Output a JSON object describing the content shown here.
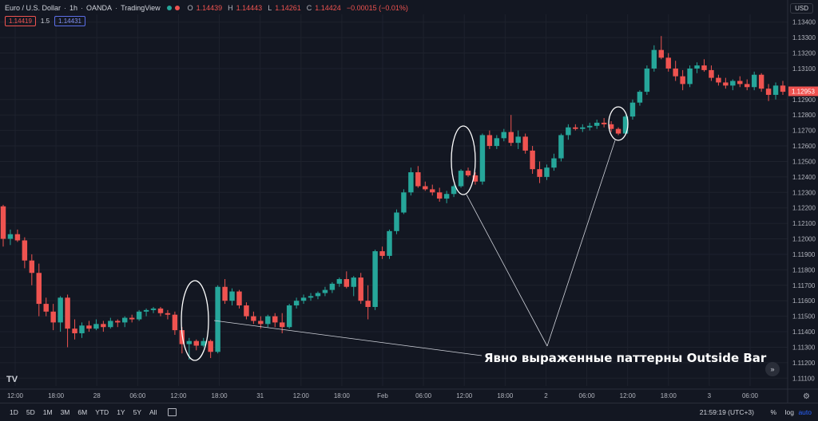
{
  "header": {
    "symbol": "Euro / U.S. Dollar",
    "interval": "1h",
    "broker": "OANDA",
    "platform": "TradingView",
    "ohlc": [
      {
        "k": "O",
        "v": "1.14439"
      },
      {
        "k": "H",
        "v": "1.14443"
      },
      {
        "k": "L",
        "v": "1.14261"
      },
      {
        "k": "C",
        "v": "1.14424"
      }
    ],
    "change": "−0.00015 (−0.01%)",
    "sell_price": "1.14419",
    "spread": "1.5",
    "buy_price": "1.14431",
    "currency": "USD"
  },
  "bottom": {
    "ranges": [
      "1D",
      "5D",
      "1M",
      "3M",
      "6M",
      "YTD",
      "1Y",
      "5Y",
      "All"
    ],
    "clock": "21:59:19 (UTC+3)",
    "percent": "%",
    "log": "log",
    "auto": "auto"
  },
  "annotation": {
    "text": "Явно выраженные паттерны Outside Bar"
  },
  "colors": {
    "up": "#26a69a",
    "down": "#ef5350",
    "current_price_bg": "#ef5350"
  },
  "icons": [
    "tradingview-logo-icon",
    "calendar-icon",
    "scroll-right-icon",
    "settings-icon"
  ],
  "chart_data": {
    "type": "candlestick",
    "symbol": "EURUSD",
    "ylim": [
      1.1105,
      1.1345
    ],
    "y_ticks": [
      "1.13400",
      "1.13300",
      "1.13200",
      "1.13100",
      "1.12900",
      "1.12800",
      "1.12700",
      "1.12600",
      "1.12500",
      "1.12400",
      "1.12300",
      "1.12200",
      "1.12100",
      "1.12000",
      "1.11900",
      "1.11800",
      "1.11700",
      "1.11600",
      "1.11500",
      "1.11400",
      "1.11300",
      "1.11200",
      "1.11100"
    ],
    "current_price": "1.12953",
    "x_ticks": [
      "12:00",
      "18:00",
      "28",
      "06:00",
      "12:00",
      "18:00",
      "31",
      "12:00",
      "18:00",
      "Feb",
      "06:00",
      "12:00",
      "18:00",
      "2",
      "06:00",
      "12:00",
      "18:00",
      "3",
      "06:00"
    ],
    "candles": [
      [
        1.1221,
        1.1222,
        1.1195,
        1.12
      ],
      [
        1.12,
        1.1206,
        1.1196,
        1.1203
      ],
      [
        1.1203,
        1.1206,
        1.1198,
        1.1199
      ],
      [
        1.1199,
        1.1201,
        1.1181,
        1.1186
      ],
      [
        1.1186,
        1.119,
        1.117,
        1.1178
      ],
      [
        1.1178,
        1.1184,
        1.115,
        1.1158
      ],
      [
        1.1158,
        1.1162,
        1.115,
        1.1153
      ],
      [
        1.1153,
        1.1158,
        1.1141,
        1.1146
      ],
      [
        1.1146,
        1.1163,
        1.114,
        1.1162
      ],
      [
        1.1162,
        1.1164,
        1.113,
        1.1142
      ],
      [
        1.1142,
        1.1148,
        1.1135,
        1.1139
      ],
      [
        1.1139,
        1.1146,
        1.1136,
        1.1144
      ],
      [
        1.1144,
        1.1147,
        1.114,
        1.1142
      ],
      [
        1.1142,
        1.1148,
        1.1141,
        1.1145
      ],
      [
        1.1145,
        1.1147,
        1.114,
        1.1143
      ],
      [
        1.1143,
        1.1149,
        1.1142,
        1.1147
      ],
      [
        1.1147,
        1.1148,
        1.1143,
        1.1146
      ],
      [
        1.1146,
        1.115,
        1.1143,
        1.1149
      ],
      [
        1.1149,
        1.1151,
        1.1146,
        1.1148
      ],
      [
        1.1148,
        1.1154,
        1.1147,
        1.1153
      ],
      [
        1.1153,
        1.1155,
        1.115,
        1.1154
      ],
      [
        1.1154,
        1.1156,
        1.1152,
        1.1155
      ],
      [
        1.1155,
        1.1156,
        1.115,
        1.1152
      ],
      [
        1.1152,
        1.1154,
        1.1148,
        1.1151
      ],
      [
        1.1151,
        1.1153,
        1.1138,
        1.1141
      ],
      [
        1.1141,
        1.1143,
        1.1126,
        1.1132
      ],
      [
        1.1132,
        1.1136,
        1.1122,
        1.1134
      ],
      [
        1.1134,
        1.1135,
        1.1128,
        1.1131
      ],
      [
        1.1131,
        1.1136,
        1.113,
        1.1134
      ],
      [
        1.1134,
        1.1135,
        1.1123,
        1.1127
      ],
      [
        1.1127,
        1.117,
        1.1126,
        1.1169
      ],
      [
        1.1169,
        1.1174,
        1.1158,
        1.116
      ],
      [
        1.116,
        1.1168,
        1.1157,
        1.1166
      ],
      [
        1.1166,
        1.1167,
        1.1155,
        1.1157
      ],
      [
        1.1157,
        1.1159,
        1.1148,
        1.115
      ],
      [
        1.115,
        1.1153,
        1.1145,
        1.1147
      ],
      [
        1.1147,
        1.115,
        1.1142,
        1.1145
      ],
      [
        1.1145,
        1.1151,
        1.1143,
        1.115
      ],
      [
        1.115,
        1.1152,
        1.1143,
        1.1146
      ],
      [
        1.1146,
        1.1152,
        1.1139,
        1.1143
      ],
      [
        1.1143,
        1.1158,
        1.1142,
        1.1157
      ],
      [
        1.1157,
        1.1162,
        1.1155,
        1.116
      ],
      [
        1.116,
        1.1164,
        1.1158,
        1.1162
      ],
      [
        1.1162,
        1.1165,
        1.116,
        1.1163
      ],
      [
        1.1163,
        1.1166,
        1.1161,
        1.1165
      ],
      [
        1.1165,
        1.1169,
        1.1163,
        1.1167
      ],
      [
        1.1167,
        1.1172,
        1.1165,
        1.1171
      ],
      [
        1.1171,
        1.1175,
        1.1169,
        1.1174
      ],
      [
        1.1174,
        1.1179,
        1.1168,
        1.1169
      ],
      [
        1.1169,
        1.1176,
        1.1163,
        1.1175
      ],
      [
        1.1175,
        1.1178,
        1.1158,
        1.116
      ],
      [
        1.116,
        1.117,
        1.1148,
        1.1156
      ],
      [
        1.1156,
        1.1193,
        1.1154,
        1.1192
      ],
      [
        1.1192,
        1.1195,
        1.1187,
        1.1189
      ],
      [
        1.1189,
        1.1206,
        1.1187,
        1.1205
      ],
      [
        1.1205,
        1.1219,
        1.1203,
        1.1217
      ],
      [
        1.1217,
        1.1232,
        1.1216,
        1.123
      ],
      [
        1.123,
        1.1246,
        1.1228,
        1.1243
      ],
      [
        1.1243,
        1.1247,
        1.1233,
        1.1234
      ],
      [
        1.1234,
        1.1237,
        1.1231,
        1.1232
      ],
      [
        1.1232,
        1.1235,
        1.1228,
        1.123
      ],
      [
        1.123,
        1.1233,
        1.1224,
        1.1226
      ],
      [
        1.1226,
        1.1231,
        1.1223,
        1.1229
      ],
      [
        1.1229,
        1.1235,
        1.1227,
        1.1234
      ],
      [
        1.1234,
        1.1245,
        1.1233,
        1.1244
      ],
      [
        1.1244,
        1.1246,
        1.124,
        1.1241
      ],
      [
        1.1241,
        1.1243,
        1.1235,
        1.1237
      ],
      [
        1.1237,
        1.1268,
        1.1235,
        1.1267
      ],
      [
        1.1267,
        1.127,
        1.1258,
        1.126
      ],
      [
        1.126,
        1.1267,
        1.1258,
        1.1265
      ],
      [
        1.1265,
        1.1271,
        1.1263,
        1.1269
      ],
      [
        1.1269,
        1.128,
        1.126,
        1.1262
      ],
      [
        1.1262,
        1.127,
        1.1258,
        1.1266
      ],
      [
        1.1266,
        1.1268,
        1.1255,
        1.1257
      ],
      [
        1.1257,
        1.126,
        1.1242,
        1.1245
      ],
      [
        1.1245,
        1.125,
        1.1236,
        1.124
      ],
      [
        1.124,
        1.1248,
        1.1238,
        1.1246
      ],
      [
        1.1246,
        1.1255,
        1.1244,
        1.1252
      ],
      [
        1.1252,
        1.1268,
        1.125,
        1.1267
      ],
      [
        1.1267,
        1.1274,
        1.1264,
        1.1272
      ],
      [
        1.1272,
        1.1274,
        1.127,
        1.1271
      ],
      [
        1.1271,
        1.1274,
        1.1269,
        1.1272
      ],
      [
        1.1272,
        1.1275,
        1.127,
        1.1273
      ],
      [
        1.1273,
        1.1277,
        1.1271,
        1.1275
      ],
      [
        1.1275,
        1.1278,
        1.1272,
        1.1274
      ],
      [
        1.1274,
        1.1276,
        1.1269,
        1.1271
      ],
      [
        1.1271,
        1.1272,
        1.1267,
        1.1268
      ],
      [
        1.1268,
        1.128,
        1.1267,
        1.1279
      ],
      [
        1.1279,
        1.129,
        1.1277,
        1.1288
      ],
      [
        1.1288,
        1.1296,
        1.1286,
        1.1295
      ],
      [
        1.1295,
        1.1312,
        1.1293,
        1.131
      ],
      [
        1.131,
        1.1325,
        1.1308,
        1.1322
      ],
      [
        1.1322,
        1.1331,
        1.1316,
        1.1317
      ],
      [
        1.1317,
        1.132,
        1.1308,
        1.131
      ],
      [
        1.131,
        1.1315,
        1.1302,
        1.1305
      ],
      [
        1.1305,
        1.1309,
        1.1296,
        1.13
      ],
      [
        1.13,
        1.1312,
        1.1298,
        1.131
      ],
      [
        1.131,
        1.1314,
        1.1307,
        1.1312
      ],
      [
        1.1312,
        1.1316,
        1.1308,
        1.1309
      ],
      [
        1.1309,
        1.1312,
        1.1302,
        1.1304
      ],
      [
        1.1304,
        1.1306,
        1.1299,
        1.1301
      ],
      [
        1.1301,
        1.1304,
        1.1297,
        1.1299
      ],
      [
        1.1299,
        1.1303,
        1.1296,
        1.1302
      ],
      [
        1.1302,
        1.1305,
        1.1298,
        1.13
      ],
      [
        1.13,
        1.1303,
        1.1296,
        1.1298
      ],
      [
        1.1298,
        1.1308,
        1.1296,
        1.1306
      ],
      [
        1.1306,
        1.1307,
        1.1295,
        1.1297
      ],
      [
        1.1297,
        1.13,
        1.1289,
        1.1293
      ],
      [
        1.1293,
        1.1301,
        1.129,
        1.1299
      ],
      [
        1.1299,
        1.1302,
        1.1293,
        1.1295
      ]
    ]
  }
}
